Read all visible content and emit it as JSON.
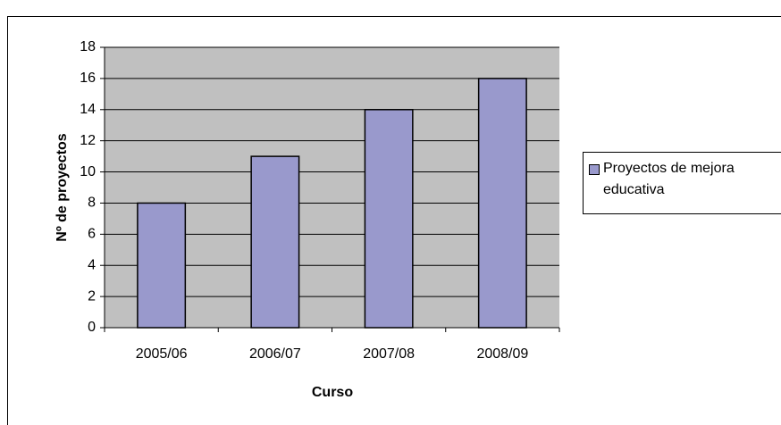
{
  "chart_data": {
    "type": "bar",
    "x_label": "Curso",
    "y_label": "Nº de proyectos",
    "categories": [
      "2005/06",
      "2006/07",
      "2007/08",
      "2008/09"
    ],
    "series": [
      {
        "name": "Proyectos de mejora educativa",
        "color": "#9999cc",
        "values": [
          8,
          11,
          14,
          16
        ]
      }
    ],
    "ylim": [
      0,
      18
    ],
    "yticks": [
      0,
      2,
      4,
      6,
      8,
      10,
      12,
      14,
      16,
      18
    ],
    "grid": true,
    "legend": "right"
  }
}
